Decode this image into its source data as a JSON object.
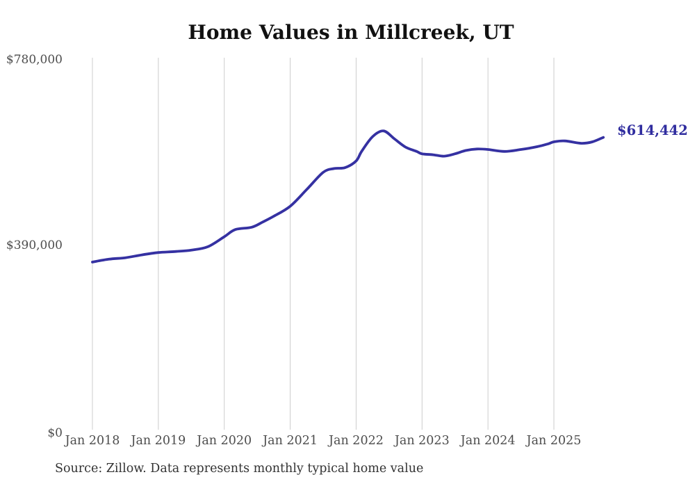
{
  "title": "Home Values in Millcreek, UT",
  "end_label": "$614,442",
  "source_note": "Source: Zillow. Data represents monthly typical home value",
  "y_axis": {
    "ticks": [
      "$780,000",
      "$390,000",
      "$0"
    ]
  },
  "x_axis": {
    "ticks": [
      "Jan 2018",
      "Jan 2019",
      "Jan 2020",
      "Jan 2021",
      "Jan 2022",
      "Jan 2023",
      "Jan 2024",
      "Jan 2025"
    ]
  },
  "colors": {
    "line": "#3531a2",
    "grid": "#cccccc",
    "end_label_text": "#302d9f",
    "axis_text": "#4d4d4d",
    "title_text": "#111111",
    "source_text": "#333333",
    "background": "#ffffff"
  },
  "chart_data": {
    "type": "line",
    "title": "Home Values in Millcreek, UT",
    "xlabel": "",
    "ylabel": "",
    "ylim": [
      0,
      780000
    ],
    "y_ticks": [
      {
        "label": "$780,000",
        "value": 780000
      },
      {
        "label": "$390,000",
        "value": 390000
      },
      {
        "label": "$0",
        "value": 0
      }
    ],
    "x_ticks": [
      "Jan 2018",
      "Jan 2019",
      "Jan 2020",
      "Jan 2021",
      "Jan 2022",
      "Jan 2023",
      "Jan 2024",
      "Jan 2025"
    ],
    "grid": "vertical-only",
    "legend": "none",
    "latest_point": {
      "label": "$614,442",
      "value": 614442
    },
    "series": [
      {
        "name": "Typical home value (monthly)",
        "points": [
          [
            "2018-01",
            353000
          ],
          [
            "2018-04",
            359000
          ],
          [
            "2018-07",
            362000
          ],
          [
            "2018-10",
            368000
          ],
          [
            "2019-01",
            373000
          ],
          [
            "2019-04",
            375000
          ],
          [
            "2019-07",
            378000
          ],
          [
            "2019-10",
            385000
          ],
          [
            "2020-01",
            406000
          ],
          [
            "2020-03",
            421000
          ],
          [
            "2020-06",
            426000
          ],
          [
            "2020-08",
            437000
          ],
          [
            "2020-10",
            449000
          ],
          [
            "2021-01",
            470000
          ],
          [
            "2021-04",
            505000
          ],
          [
            "2021-07",
            541000
          ],
          [
            "2021-09",
            549000
          ],
          [
            "2021-11",
            551000
          ],
          [
            "2022-01",
            565000
          ],
          [
            "2022-02",
            585000
          ],
          [
            "2022-04",
            616000
          ],
          [
            "2022-06",
            628000
          ],
          [
            "2022-08",
            611000
          ],
          [
            "2022-10",
            594000
          ],
          [
            "2022-12",
            585000
          ],
          [
            "2023-01",
            580000
          ],
          [
            "2023-03",
            578000
          ],
          [
            "2023-05",
            575000
          ],
          [
            "2023-07",
            580000
          ],
          [
            "2023-09",
            587000
          ],
          [
            "2023-11",
            590000
          ],
          [
            "2024-01",
            589000
          ],
          [
            "2024-04",
            585000
          ],
          [
            "2024-07",
            589000
          ],
          [
            "2024-10",
            595000
          ],
          [
            "2024-12",
            601000
          ],
          [
            "2025-01",
            605000
          ],
          [
            "2025-03",
            607000
          ],
          [
            "2025-06",
            602000
          ],
          [
            "2025-08",
            605000
          ],
          [
            "2025-10",
            614442
          ]
        ]
      }
    ]
  }
}
